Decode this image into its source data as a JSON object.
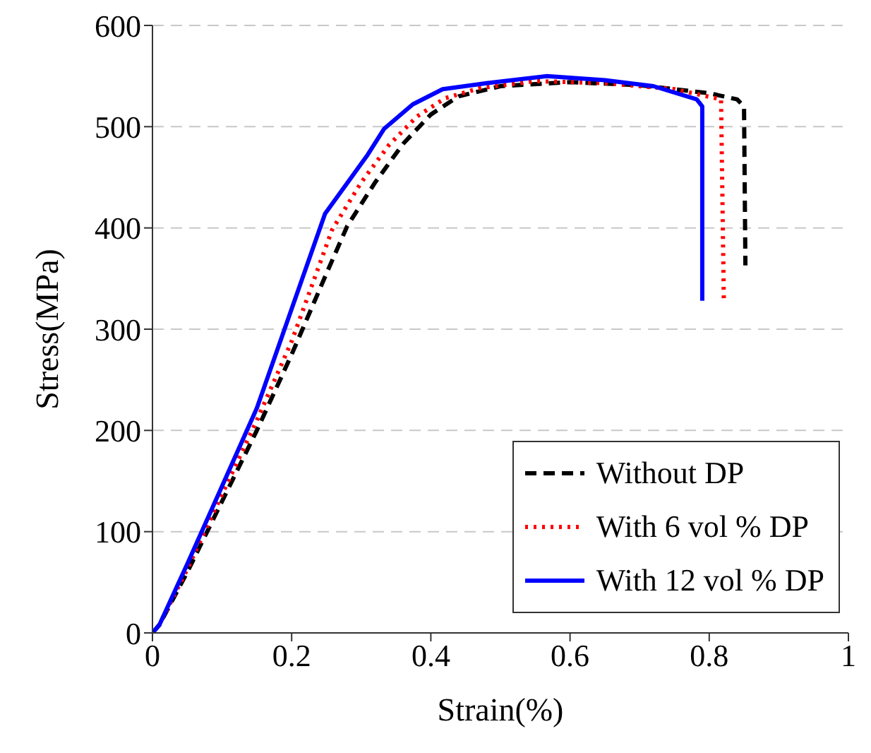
{
  "chart_data": {
    "type": "line",
    "xlabel": "Strain(%)",
    "ylabel": "Stress(MPa)",
    "xlim": [
      0,
      1
    ],
    "ylim": [
      0,
      600
    ],
    "xticks": [
      0,
      0.2,
      0.4,
      0.6,
      0.8,
      1
    ],
    "yticks": [
      0,
      100,
      200,
      300,
      400,
      500,
      600
    ],
    "grid": "y",
    "legend": "bottom right",
    "marker": "none",
    "series": [
      {
        "name": "Without DP",
        "color": "#000000",
        "line_style": "dashed",
        "x": [
          0,
          0.01,
          0.05,
          0.1,
          0.15,
          0.2,
          0.25,
          0.28,
          0.32,
          0.36,
          0.4,
          0.44,
          0.5,
          0.6,
          0.7,
          0.8,
          0.84,
          0.85,
          0.852
        ],
        "values": [
          0,
          8,
          60,
          130,
          200,
          275,
          355,
          402,
          445,
          483,
          512,
          530,
          540,
          544,
          541,
          533,
          527,
          520,
          363
        ]
      },
      {
        "name": "With 6 vol % DP",
        "color": "#ff0000",
        "line_style": "dotted",
        "x": [
          0,
          0.01,
          0.05,
          0.1,
          0.15,
          0.2,
          0.258,
          0.3,
          0.34,
          0.38,
          0.42,
          0.47,
          0.55,
          0.65,
          0.75,
          0.817,
          0.821
        ],
        "values": [
          0,
          8,
          63,
          137,
          210,
          288,
          398,
          445,
          482,
          510,
          528,
          538,
          545,
          543,
          537,
          527,
          328
        ]
      },
      {
        "name": "With 12 vol % DP",
        "color": "#0000ff",
        "line_style": "solid",
        "x": [
          0,
          0.01,
          0.05,
          0.1,
          0.15,
          0.2,
          0.248,
          0.309,
          0.333,
          0.374,
          0.417,
          0.48,
          0.567,
          0.65,
          0.72,
          0.782,
          0.79,
          0.79
        ],
        "values": [
          0,
          8,
          68,
          145,
          222,
          320,
          414,
          472,
          498,
          522,
          537,
          543,
          550,
          546,
          540,
          527,
          520,
          328
        ]
      }
    ]
  }
}
